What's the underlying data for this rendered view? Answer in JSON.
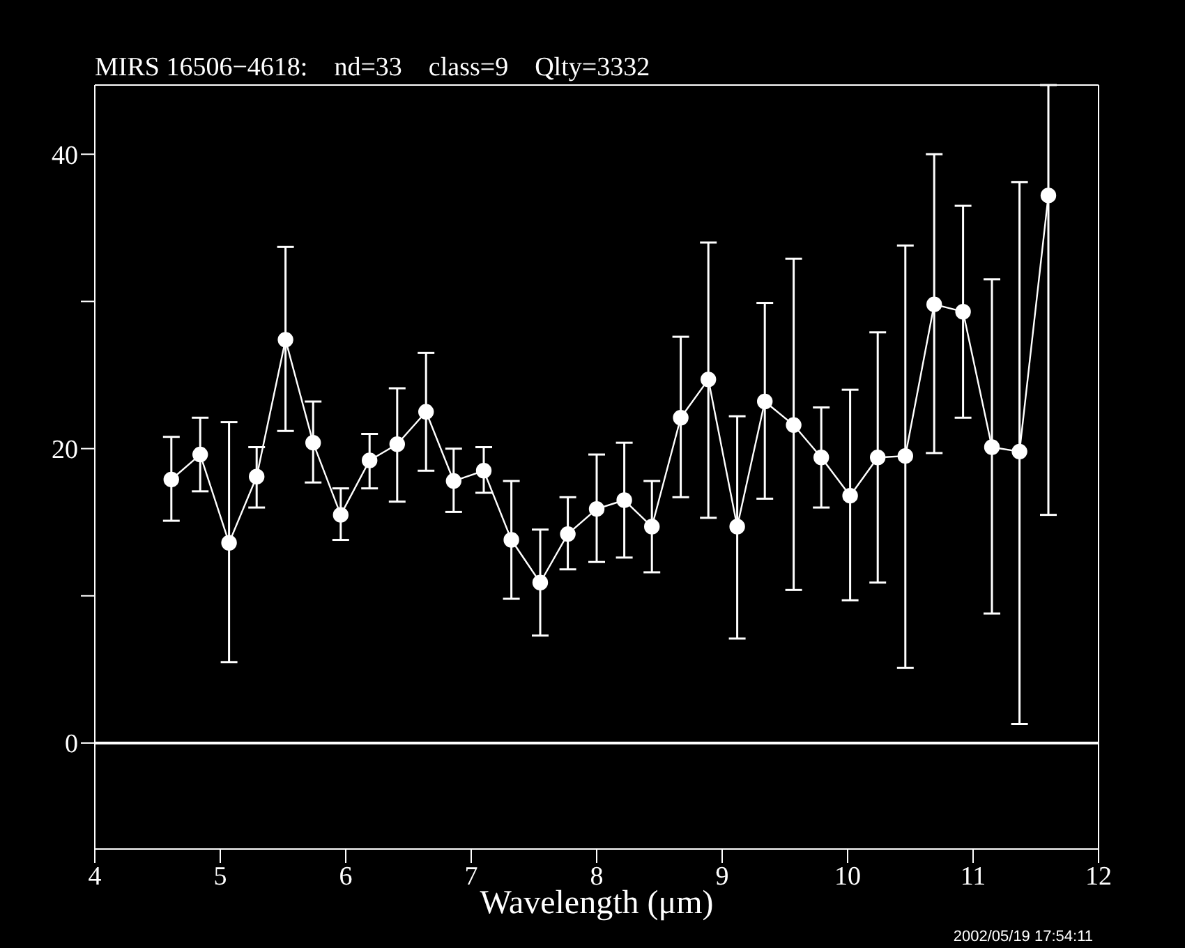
{
  "chart_data": {
    "type": "line",
    "title": "MIRS 16506−4618:    nd=33    class=9    Qlty=3332",
    "xlabel": "Wavelength (μm)",
    "annotations": [
      "2002/05/19 17:54:11"
    ],
    "x": [
      4.61,
      4.84,
      5.07,
      5.29,
      5.52,
      5.74,
      5.96,
      6.19,
      6.41,
      6.64,
      6.86,
      7.1,
      7.32,
      7.55,
      7.77,
      8.0,
      8.22,
      8.44,
      8.67,
      8.89,
      9.12,
      9.34,
      9.57,
      9.79,
      10.02,
      10.24,
      10.46,
      10.69,
      10.92,
      11.15,
      11.37,
      11.6
    ],
    "series": [
      {
        "color": "#ffffff",
        "values": [
          17.9,
          19.6,
          13.6,
          18.1,
          27.4,
          20.4,
          15.5,
          19.2,
          20.3,
          22.5,
          17.8,
          18.5,
          13.8,
          10.9,
          14.2,
          15.9,
          16.5,
          14.7,
          22.1,
          24.7,
          14.7,
          23.2,
          21.6,
          19.4,
          16.8,
          19.4,
          19.5,
          29.8,
          29.3,
          20.1,
          19.8,
          37.2
        ],
        "errors": [
          [
            15.1,
            20.8
          ],
          [
            17.1,
            22.1
          ],
          [
            5.5,
            21.8
          ],
          [
            16.0,
            20.1
          ],
          [
            21.2,
            33.7
          ],
          [
            17.7,
            23.2
          ],
          [
            13.8,
            17.3
          ],
          [
            17.3,
            21.0
          ],
          [
            16.4,
            24.1
          ],
          [
            18.5,
            26.5
          ],
          [
            15.7,
            20.0
          ],
          [
            17.0,
            20.1
          ],
          [
            9.8,
            17.8
          ],
          [
            7.3,
            14.5
          ],
          [
            11.8,
            16.7
          ],
          [
            12.3,
            19.6
          ],
          [
            12.6,
            20.4
          ],
          [
            11.6,
            17.8
          ],
          [
            16.7,
            27.6
          ],
          [
            15.3,
            34.0
          ],
          [
            7.1,
            22.2
          ],
          [
            16.6,
            29.9
          ],
          [
            10.4,
            32.9
          ],
          [
            16.0,
            22.8
          ],
          [
            9.7,
            24.0
          ],
          [
            10.9,
            27.9
          ],
          [
            5.1,
            33.8
          ],
          [
            19.7,
            40.0
          ],
          [
            22.1,
            36.5
          ],
          [
            8.8,
            31.5
          ],
          [
            1.3,
            38.1
          ],
          [
            15.5,
            44.7
          ]
        ]
      }
    ],
    "xlim": [
      4,
      12
    ],
    "xticks": [
      4,
      5,
      6,
      7,
      8,
      9,
      10,
      11,
      12
    ],
    "ylim": [
      -7.2,
      44.7
    ],
    "yticks": [
      0,
      {
        "value": 10,
        "label": null
      },
      20,
      {
        "value": 30,
        "label": null
      },
      40
    ],
    "ref_lines": [
      {
        "axis": "y",
        "value": 0,
        "color": "#ffffff"
      }
    ],
    "marker": "circle",
    "line_style": "solid"
  }
}
